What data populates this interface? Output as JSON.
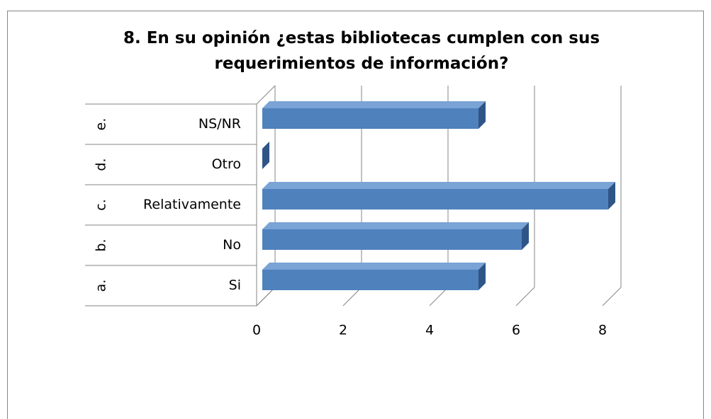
{
  "chart_data": {
    "type": "bar3d_horizontal",
    "title": "8.  En su opinión ¿estas bibliotecas cumplen con sus requerimientos de información?",
    "category_groups": [
      "a.",
      "b.",
      "c.",
      "d.",
      "e."
    ],
    "categories": [
      "Si",
      "No",
      "Relativamente",
      "Otro",
      "NS/NR"
    ],
    "values": [
      5,
      6,
      8,
      0,
      5
    ],
    "color": "#4f81bd",
    "xlim": [
      0,
      8
    ],
    "xticks": [
      0,
      2,
      4,
      6,
      8
    ],
    "grid": true
  }
}
